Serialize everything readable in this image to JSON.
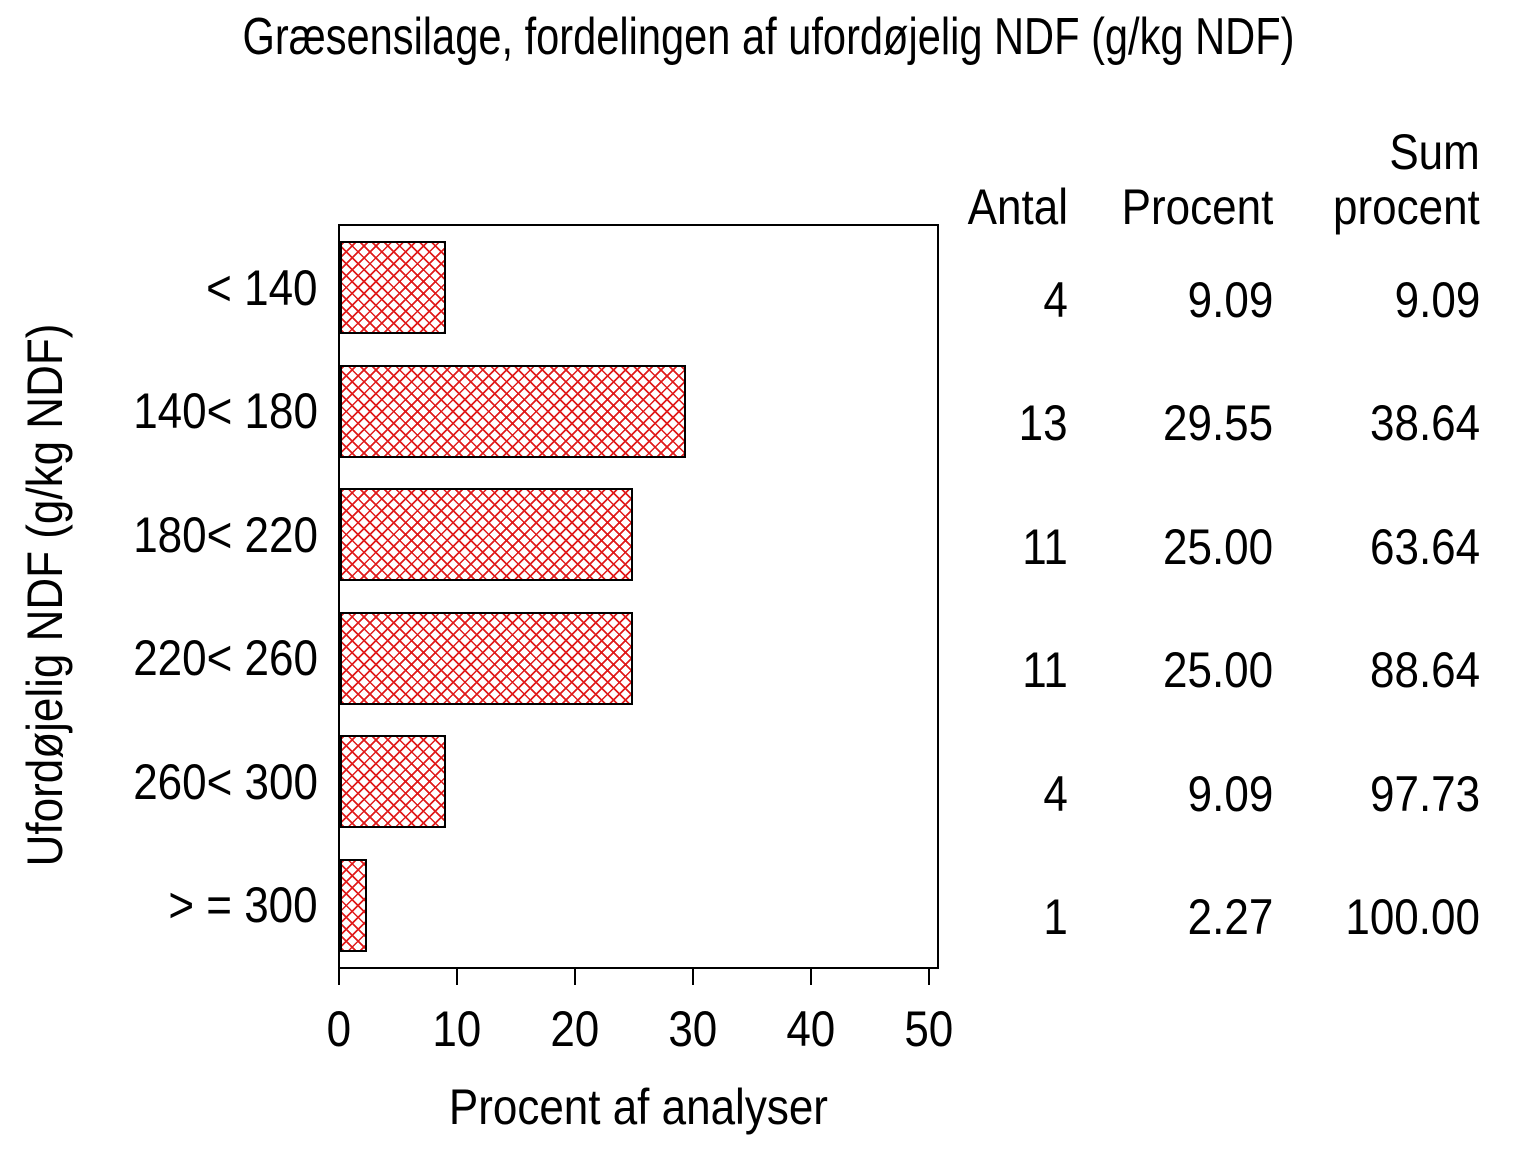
{
  "title": "Græsensilage, fordelingen af ufordøjelig NDF (g/kg NDF)",
  "chart_data": {
    "type": "bar",
    "orientation": "horizontal",
    "title": "Græsensilage, fordelingen af ufordøjelig NDF (g/kg NDF)",
    "categories": [
      "< 140",
      "140< 180",
      "180< 220",
      "220< 260",
      "260< 300",
      "> = 300"
    ],
    "values": [
      9.09,
      29.55,
      25.0,
      25.0,
      9.09,
      2.27
    ],
    "counts": [
      4,
      13,
      11,
      11,
      4,
      1
    ],
    "cumulative_percent": [
      9.09,
      38.64,
      63.64,
      88.64,
      97.73,
      100.0
    ],
    "xlabel": "Procent af analyser",
    "ylabel": "Ufordøjelig NDF (g/kg NDF)",
    "xlim": [
      0,
      51
    ],
    "xticks": [
      "0",
      "10",
      "20",
      "30",
      "40",
      "50"
    ],
    "grid": "off",
    "bar_fill_style": "red diagonal crosshatch",
    "bar_hatch_color": "#e01b1b",
    "bar_border_color": "#000000",
    "frame_color": "#000000",
    "background_color": "#ffffff"
  },
  "table": {
    "header": {
      "antal": "Antal",
      "procent": "Procent",
      "sum_line1": "Sum",
      "sum_line2": "procent"
    },
    "rows": [
      {
        "antal": "4",
        "procent": "9.09",
        "sum": "9.09"
      },
      {
        "antal": "13",
        "procent": "29.55",
        "sum": "38.64"
      },
      {
        "antal": "11",
        "procent": "25.00",
        "sum": "63.64"
      },
      {
        "antal": "11",
        "procent": "25.00",
        "sum": "88.64"
      },
      {
        "antal": "4",
        "procent": "9.09",
        "sum": "97.73"
      },
      {
        "antal": "1",
        "procent": "2.27",
        "sum": "100.00"
      }
    ]
  }
}
